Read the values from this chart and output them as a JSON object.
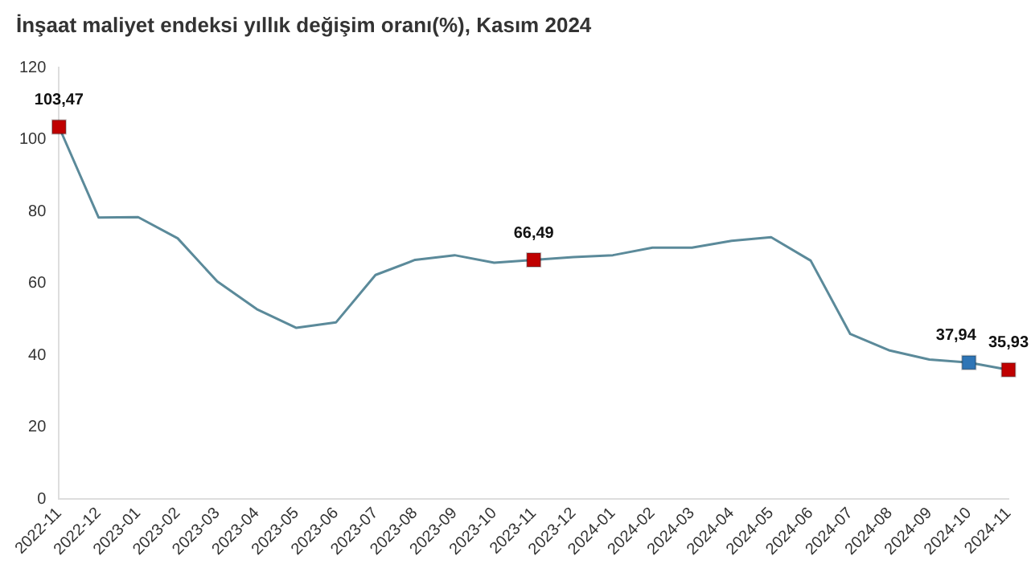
{
  "chart_data": {
    "type": "line",
    "title": "İnşaat maliyet endeksi yıllık değişim oranı(%), Kasım 2024",
    "categories": [
      "2022-11",
      "2022-12",
      "2023-01",
      "2023-02",
      "2023-03",
      "2023-04",
      "2023-05",
      "2023-06",
      "2023-07",
      "2023-08",
      "2023-09",
      "2023-10",
      "2023-11",
      "2023-12",
      "2024-01",
      "2024-02",
      "2024-03",
      "2024-04",
      "2024-05",
      "2024-06",
      "2024-07",
      "2024-08",
      "2024-09",
      "2024-10",
      "2024-11"
    ],
    "series": [
      {
        "color": "#5b8a9a",
        "values": [
          103.47,
          78.3,
          78.4,
          72.5,
          60.5,
          52.8,
          47.6,
          49.1,
          62.3,
          66.5,
          67.8,
          65.7,
          66.49,
          67.3,
          67.8,
          69.9,
          69.9,
          71.8,
          72.8,
          66.3,
          45.9,
          41.3,
          38.8,
          37.94,
          35.93
        ],
        "colors": [
          "#c00000",
          null,
          null,
          null,
          null,
          null,
          null,
          null,
          null,
          null,
          null,
          null,
          "#c00000",
          null,
          null,
          null,
          null,
          null,
          null,
          null,
          null,
          null,
          null,
          "#2e75b6",
          "#c00000"
        ],
        "value_labels": [
          "103,47",
          null,
          null,
          null,
          null,
          null,
          null,
          null,
          null,
          null,
          null,
          null,
          "66,49",
          null,
          null,
          null,
          null,
          null,
          null,
          null,
          null,
          null,
          null,
          "37,94",
          "35,93"
        ]
      }
    ],
    "ylim": [
      0,
      120
    ],
    "yticks": [
      0,
      20,
      40,
      60,
      80,
      100,
      120
    ],
    "grid": false,
    "legend": false
  }
}
